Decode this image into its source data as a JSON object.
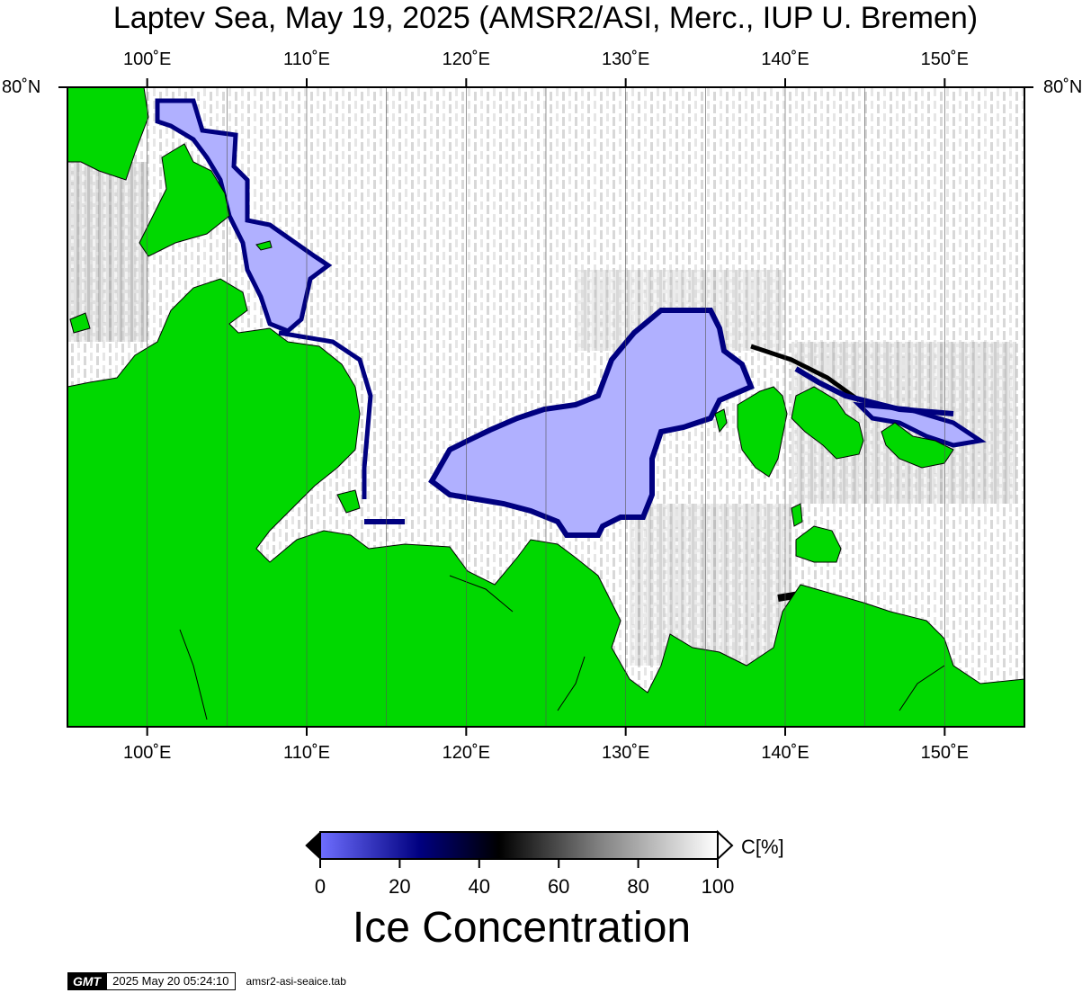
{
  "title": "Laptev Sea, May 19, 2025 (AMSR2/ASI, Merc., IUP U. Bremen)",
  "map": {
    "lon_range": [
      95,
      155
    ],
    "lon_ticks": [
      100,
      110,
      120,
      130,
      140,
      150
    ],
    "lon_tick_labels": [
      "100˚E",
      "110˚E",
      "120˚E",
      "130˚E",
      "140˚E",
      "150˚E"
    ],
    "lat_label_left": "80˚N",
    "lat_label_right": "80˚N",
    "colors": {
      "land": "#00d800",
      "open_water": "#b0b0ff",
      "ice_high": "#ffffff",
      "ice_edge": "#000080",
      "frame": "#000000"
    }
  },
  "colorbar": {
    "range": [
      0,
      100
    ],
    "tick_labels": [
      "0",
      "20",
      "40",
      "60",
      "80",
      "100"
    ],
    "unit": "C[%]",
    "title": "Ice Concentration",
    "stops": [
      "#6e6eff",
      "#000080",
      "#000000",
      "#808080",
      "#ffffff"
    ]
  },
  "stamp": {
    "logo": "GMT",
    "timestamp": "2025 May 20 05:24:10",
    "file": "amsr2-asi-seaice.tab"
  }
}
